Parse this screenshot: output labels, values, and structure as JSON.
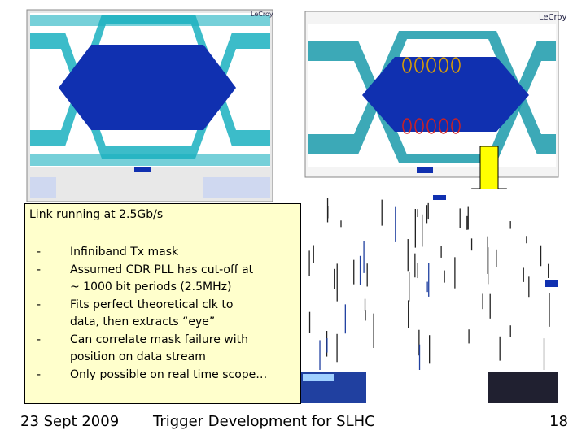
{
  "scopes": [
    {
      "brand": "LeCroy"
    },
    {
      "brand": "LeCroy"
    }
  ],
  "box": {
    "title": "Link running at 2.5Gb/s",
    "bullets": [
      {
        "marker": "-",
        "lines": [
          "Infiniband Tx mask"
        ]
      },
      {
        "marker": "-",
        "lines": [
          "Assumed CDR PLL has cut-off at",
          "~ 1000 bit periods (2.5MHz)"
        ]
      },
      {
        "marker": "-",
        "lines": [
          "Fits perfect theoretical clk to",
          "data, then extracts “eye”"
        ]
      },
      {
        "marker": "-",
        "lines": [
          "Can correlate mask failure with",
          "position on data stream"
        ]
      },
      {
        "marker": "-",
        "lines": [
          "Only possible on real time scope…"
        ]
      }
    ]
  },
  "footer": {
    "date": "23 Sept 2009",
    "title": "Trigger Development for SLHC",
    "page": "18"
  }
}
